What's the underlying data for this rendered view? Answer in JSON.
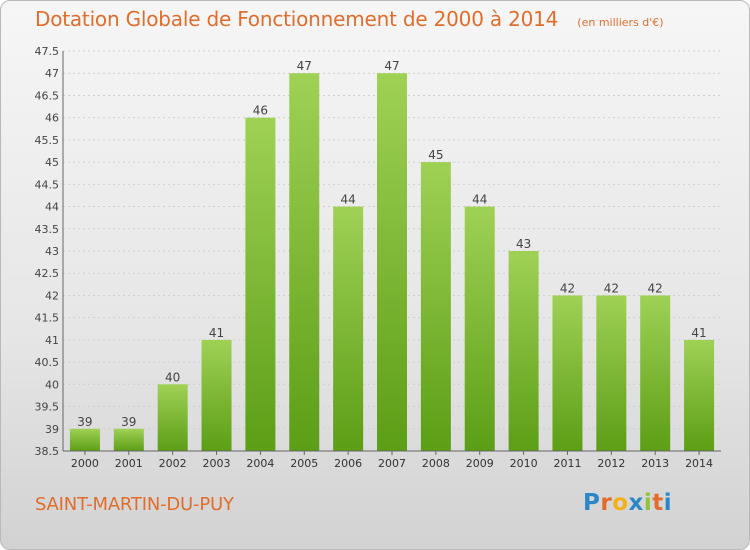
{
  "chart_data": {
    "type": "bar",
    "title": "Dotation Globale de Fonctionnement de 2000 à 2014",
    "subtitle": "(en milliers d'€)",
    "categories": [
      "2000",
      "2001",
      "2002",
      "2003",
      "2004",
      "2005",
      "2006",
      "2007",
      "2008",
      "2009",
      "2010",
      "2011",
      "2012",
      "2013",
      "2014"
    ],
    "values": [
      39,
      39,
      40,
      41,
      46,
      47,
      44,
      47,
      45,
      44,
      43,
      42,
      42,
      42,
      41
    ],
    "ylim": [
      38.5,
      47.5
    ],
    "yticks": [
      "38.5",
      "39",
      "39.5",
      "40",
      "40.5",
      "41",
      "41.5",
      "42",
      "42.5",
      "43",
      "43.5",
      "44",
      "44.5",
      "45",
      "45.5",
      "46",
      "46.5",
      "47",
      "47.5"
    ],
    "xlabel": "",
    "ylabel": "",
    "grid": true,
    "bar_color": "#7dbb2e",
    "label_color": "#e06d2c"
  },
  "footer": {
    "commune": "SAINT-MARTIN-DU-PUY",
    "logo": "Proxiti"
  }
}
